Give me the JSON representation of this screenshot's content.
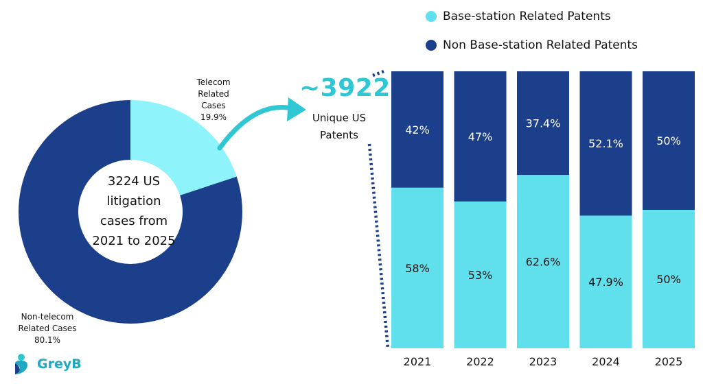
{
  "donut": {
    "center_text": [
      "3224 US",
      "litigation",
      "cases from",
      "2021 to 2025"
    ],
    "slices": [
      {
        "name": "Telecom Related Cases",
        "label_lines": [
          "Telecom",
          "Related",
          "Cases",
          "19.9%"
        ],
        "value": 19.9,
        "color": "#8ef3fb"
      },
      {
        "name": "Non-telecom Related Cases",
        "label_lines": [
          "Non-telecom",
          "Related Cases",
          "80.1%"
        ],
        "value": 80.1,
        "color": "#1b3f8b"
      }
    ]
  },
  "callout": {
    "number": "~3922",
    "label_lines": [
      "Unique US",
      "Patents"
    ],
    "color": "#2fc7d3"
  },
  "legend": {
    "items": [
      {
        "label": "Base-station Related Patents",
        "color": "#5fe0ec"
      },
      {
        "label": "Non Base-station Related Patents",
        "color": "#1b3f8b"
      }
    ]
  },
  "chart_data": {
    "type": "bar",
    "stacked": true,
    "categories": [
      "2021",
      "2022",
      "2023",
      "2024",
      "2025"
    ],
    "series": [
      {
        "name": "Base-station Related Patents",
        "values": [
          58,
          53,
          62.6,
          47.9,
          50
        ],
        "labels": [
          "58%",
          "53%",
          "62.6%",
          "47.9%",
          "50%"
        ],
        "color": "#5fe0ec"
      },
      {
        "name": "Non Base-station Related Patents",
        "values": [
          42,
          47,
          37.4,
          52.1,
          50
        ],
        "labels": [
          "42%",
          "47%",
          "37.4%",
          "52.1%",
          "50%"
        ],
        "color": "#1b3f8b"
      }
    ],
    "ylim": [
      0,
      100
    ],
    "legend": "top"
  },
  "logo": {
    "text": "GreyB"
  }
}
